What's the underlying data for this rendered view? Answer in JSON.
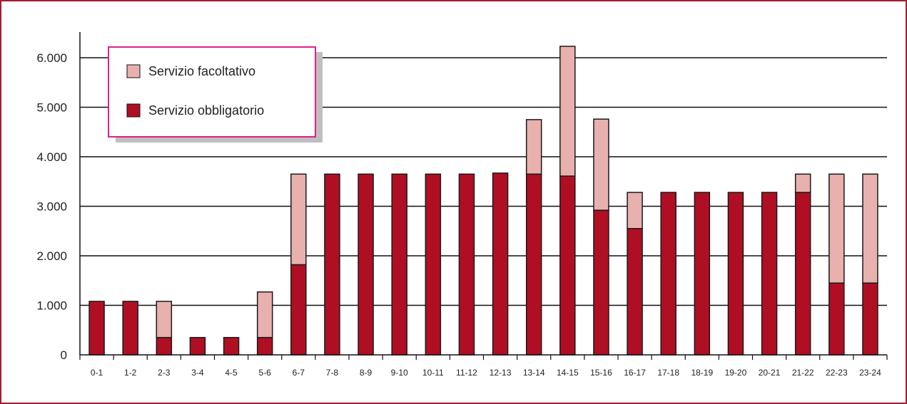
{
  "chart_data": {
    "type": "bar",
    "stacked": true,
    "categories": [
      "0-1",
      "1-2",
      "2-3",
      "3-4",
      "4-5",
      "5-6",
      "6-7",
      "7-8",
      "8-9",
      "9-10",
      "10-11",
      "11-12",
      "12-13",
      "13-14",
      "14-15",
      "15-16",
      "16-17",
      "17-18",
      "18-19",
      "19-20",
      "20-21",
      "21-22",
      "22-23",
      "23-24"
    ],
    "series": [
      {
        "name": "Servizio obbligatorio",
        "color": "#b00f23",
        "values": [
          1080,
          1080,
          350,
          350,
          350,
          350,
          1820,
          3650,
          3650,
          3650,
          3650,
          3650,
          3670,
          3650,
          3610,
          2920,
          2550,
          3280,
          3280,
          3280,
          3280,
          3280,
          1450,
          1450
        ]
      },
      {
        "name": "Servizio facoltativo",
        "color": "#e8b1ae",
        "values": [
          0,
          0,
          730,
          0,
          0,
          920,
          1830,
          0,
          0,
          0,
          0,
          0,
          0,
          1100,
          2620,
          1840,
          730,
          0,
          0,
          0,
          0,
          370,
          2200,
          2200
        ]
      }
    ],
    "y_ticks": [
      0,
      1000,
      2000,
      3000,
      4000,
      5000,
      6000
    ],
    "y_tick_labels": [
      "0",
      "1.000",
      "2.000",
      "3.000",
      "4.000",
      "5.000",
      "6.000"
    ],
    "ylim": [
      0,
      6500
    ],
    "grid": true,
    "legend_position": "top-left",
    "title": "",
    "xlabel": "",
    "ylabel": ""
  },
  "legend": {
    "items": [
      {
        "label": "Servizio facoltativo",
        "color": "#e8b1ae"
      },
      {
        "label": "Servizio obbligatorio",
        "color": "#b00f23"
      }
    ]
  },
  "colors": {
    "frame": "#a51c30",
    "legend_border": "#e0208a",
    "grid": "#111111"
  }
}
